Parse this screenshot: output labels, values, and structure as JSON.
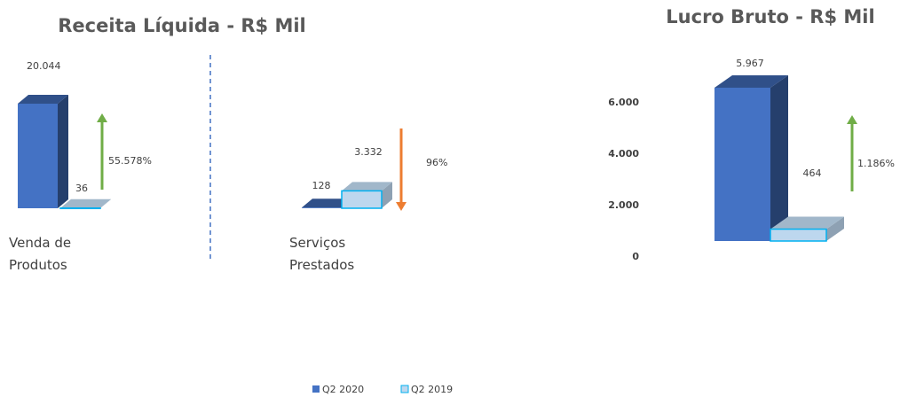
{
  "chart_data": [
    {
      "type": "bar3d",
      "title": "Receita Líquida - R$ Mil",
      "categories": [
        "Venda de Produtos",
        "Serviços Prestados"
      ],
      "series": [
        {
          "name": "Q2 2020",
          "color": "#4472c4",
          "values": [
            20044,
            128
          ],
          "value_labels": [
            "20.044",
            "128"
          ]
        },
        {
          "name": "Q2 2019",
          "color": "#bdd7ee",
          "values": [
            36,
            3332
          ],
          "value_labels": [
            "36",
            "3.332"
          ]
        }
      ],
      "annotations": [
        "55.578%",
        "96%"
      ]
    },
    {
      "type": "bar3d",
      "title": "Lucro Bruto - R$ Mil",
      "categories": [
        null
      ],
      "series": [
        {
          "color": "#4472c4",
          "values": [
            5967
          ],
          "value_labels": [
            "5.967"
          ]
        },
        {
          "color": "#bdd7ee",
          "values": [
            464
          ],
          "value_labels": [
            "464"
          ]
        }
      ],
      "ylim": [
        0,
        7000
      ],
      "yticks": [
        0,
        {
          "value": 2000,
          "label": "2.000"
        },
        {
          "value": 4000,
          "label": "4.000"
        },
        {
          "value": 6000,
          "label": "6.000"
        }
      ],
      "annotations": [
        "1.186%"
      ]
    }
  ]
}
